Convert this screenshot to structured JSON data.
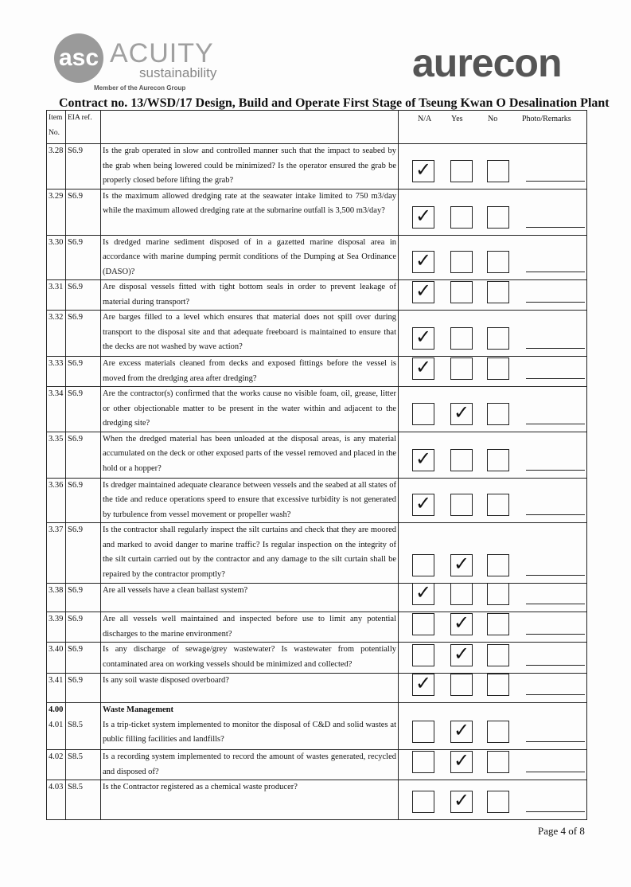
{
  "header": {
    "logo_left": "ACUITY sustainability",
    "logo_left_mark": "asc",
    "logo_left_tagline": "Member of the Aurecon Group",
    "logo_right": "aurecon",
    "title": "Contract no.  13/WSD/17 Design, Build and Operate First Stage of Tseung Kwan O Desalination Plant"
  },
  "columns": {
    "item": "Item No.",
    "eia": "EIA ref.",
    "na": "N/A",
    "yes": "Yes",
    "no": "No",
    "remarks": "Photo/Remarks"
  },
  "rows": [
    {
      "item": "3.28",
      "eia": "S6.9",
      "text": "Is the grab operated in slow and controlled manner such that the impact to seabed by the grab when being lowered could be minimized? Is the operator ensured the grab be properly closed before lifting the grab?",
      "answer": "N/A"
    },
    {
      "item": "3.29",
      "eia": "S6.9",
      "text": "Is the maximum allowed dredging rate at the seawater intake limited to 750 m3/day while the maximum allowed dredging rate at the submarine outfall is 3,500 m3/day?",
      "answer": "N/A"
    },
    {
      "item": "3.30",
      "eia": "S6.9",
      "text": "Is dredged marine sediment disposed of in a gazetted marine disposal area in accordance with marine dumping permit conditions of the Dumping at Sea Ordinance (DASO)?",
      "answer": "N/A"
    },
    {
      "item": "3.31",
      "eia": "S6.9",
      "text": "Are disposal vessels fitted with tight bottom seals in order to prevent leakage of material during transport?",
      "answer": "N/A"
    },
    {
      "item": "3.32",
      "eia": "S6.9",
      "text": "Are barges filled to a level which ensures that material does not spill over during transport to the disposal site and that adequate freeboard is maintained to ensure that the decks are not washed by wave action?",
      "answer": "N/A"
    },
    {
      "item": "3.33",
      "eia": "S6.9",
      "text": "Are excess materials cleaned from decks and exposed fittings before the vessel is moved from the dredging area after dredging?",
      "answer": "N/A"
    },
    {
      "item": "3.34",
      "eia": "S6.9",
      "text": "Are the contractor(s) confirmed that the works cause no visible foam, oil, grease, litter or other objectionable matter to be present in the water within and adjacent to the dredging site?",
      "answer": "Yes"
    },
    {
      "item": "3.35",
      "eia": "S6.9",
      "text": "When the dredged material has been unloaded at the disposal areas, is any material accumulated on the deck or other exposed parts of the vessel removed and placed in the hold or a hopper?",
      "answer": "N/A"
    },
    {
      "item": "3.36",
      "eia": "S6.9",
      "text": "Is dredger maintained adequate clearance between vessels and the seabed at all states of the tide and reduce operations speed to ensure that excessive turbidity is not generated by turbulence from vessel movement or propeller wash?",
      "answer": "N/A"
    },
    {
      "item": "3.37",
      "eia": "S6.9",
      "text": "Is the contractor shall regularly inspect the silt curtains and check that they are moored and marked to avoid danger to marine traffic? Is regular inspection on the integrity of the silt curtain carried out by the contractor and any damage to the silt curtain shall be repaired by the contractor promptly?",
      "answer": "Yes"
    },
    {
      "item": "3.38",
      "eia": "S6.9",
      "text": "Are all vessels have a clean ballast system?",
      "answer": "N/A"
    },
    {
      "item": "3.39",
      "eia": "S6.9",
      "text": "Are all vessels well maintained and inspected before use to limit any potential discharges to the marine environment?",
      "answer": "Yes"
    },
    {
      "item": "3.40",
      "eia": "S6.9",
      "text": "Is any discharge of sewage/grey wastewater? Is wastewater from potentially contaminated area on working vessels should be minimized and collected?",
      "answer": "Yes"
    },
    {
      "item": "3.41",
      "eia": "S6.9",
      "text": "Is any soil waste disposed overboard?",
      "answer": "N/A"
    },
    {
      "item": "4.00",
      "eia": "",
      "section": "Waste Management",
      "item2": "4.01",
      "eia2": "S8.5",
      "text": "Is a trip-ticket system implemented to monitor the disposal of C&D and solid wastes at public filling facilities and landfills?",
      "answer": "Yes"
    },
    {
      "item": "4.02",
      "eia": "S8.5",
      "text": "Is a recording system implemented to record the amount of wastes generated, recycled and disposed of?",
      "answer": "Yes"
    },
    {
      "item": "4.03",
      "eia": "S8.5",
      "text": "Is the Contractor registered as a chemical waste producer?",
      "answer": "Yes"
    }
  ],
  "footer": {
    "page": "Page 4 of 8"
  }
}
